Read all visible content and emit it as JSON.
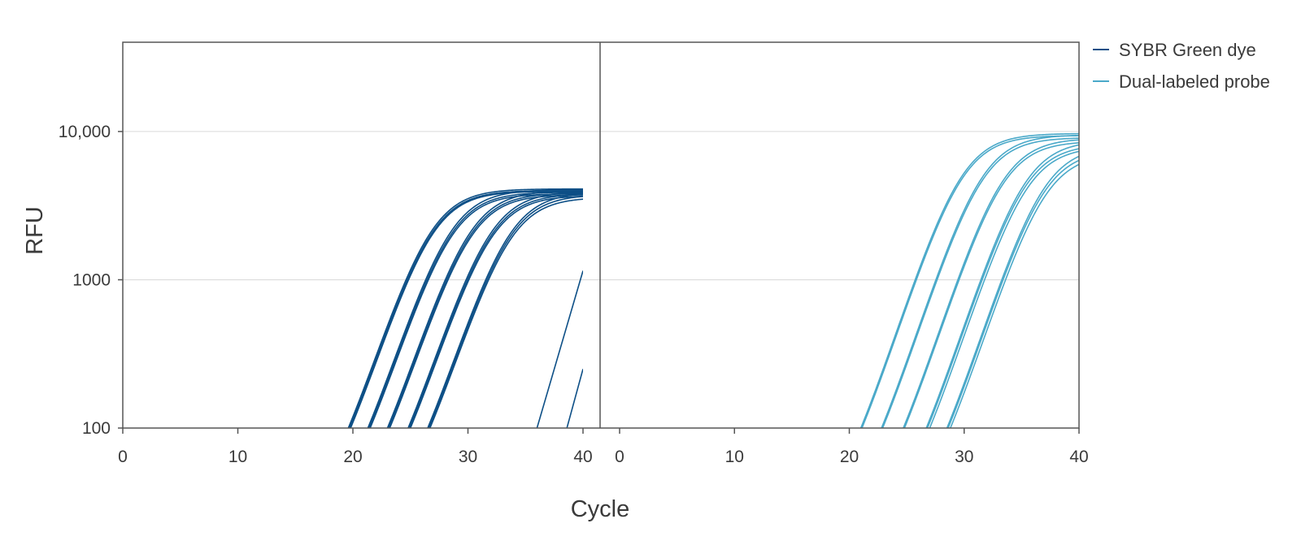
{
  "chart_data": {
    "type": "line",
    "title": "",
    "xlabel": "Cycle",
    "ylabel": "RFU",
    "y_scale": "log",
    "ylim": [
      100,
      40000
    ],
    "grid": "horizontal",
    "legend_placement": "right",
    "colors": {
      "sybr": "#0d4f86",
      "probe": "#4aa9c9",
      "axis": "#555555",
      "grid": "#d9d9d9"
    },
    "y_ticks": [
      {
        "value": 100,
        "label": "100"
      },
      {
        "value": 1000,
        "label": "1000"
      },
      {
        "value": 10000,
        "label": "10,000"
      }
    ],
    "panels": [
      {
        "name": "SYBR Green dye",
        "xlim": [
          0,
          40
        ],
        "x_ticks": [
          {
            "value": 0,
            "label": "0"
          },
          {
            "value": 10,
            "label": "10"
          },
          {
            "value": 20,
            "label": "20"
          },
          {
            "value": 30,
            "label": "30"
          },
          {
            "value": 40,
            "label": "40"
          }
        ],
        "color": "#0d4f86",
        "curve_params": [
          {
            "cq": 19.6,
            "plateau": 4100
          },
          {
            "cq": 19.7,
            "plateau": 4000
          },
          {
            "cq": 19.8,
            "plateau": 3950
          },
          {
            "cq": 21.3,
            "plateau": 4050
          },
          {
            "cq": 21.4,
            "plateau": 3900
          },
          {
            "cq": 21.5,
            "plateau": 3800
          },
          {
            "cq": 23.0,
            "plateau": 4000
          },
          {
            "cq": 23.1,
            "plateau": 3850
          },
          {
            "cq": 23.2,
            "plateau": 3750
          },
          {
            "cq": 24.8,
            "plateau": 3950
          },
          {
            "cq": 24.9,
            "plateau": 3800
          },
          {
            "cq": 25.0,
            "plateau": 3700
          },
          {
            "cq": 26.5,
            "plateau": 3900
          },
          {
            "cq": 26.6,
            "plateau": 3750
          },
          {
            "cq": 26.7,
            "plateau": 3600
          }
        ],
        "late_lines": [
          {
            "x": [
              36.0,
              40.0
            ],
            "y": [
              100,
              1150
            ]
          },
          {
            "x": [
              38.6,
              40.0
            ],
            "y": [
              100,
              250
            ]
          }
        ]
      },
      {
        "name": "Dual-labeled probe",
        "xlim": [
          0,
          40
        ],
        "x_ticks": [
          {
            "value": 0,
            "label": "0"
          },
          {
            "value": 10,
            "label": "10"
          },
          {
            "value": 20,
            "label": "20"
          },
          {
            "value": 30,
            "label": "30"
          },
          {
            "value": 40,
            "label": "40"
          }
        ],
        "color": "#4aa9c9",
        "curve_params": [
          {
            "cq": 21.0,
            "plateau": 9700
          },
          {
            "cq": 21.1,
            "plateau": 9400
          },
          {
            "cq": 22.8,
            "plateau": 9500
          },
          {
            "cq": 22.9,
            "plateau": 9100
          },
          {
            "cq": 24.7,
            "plateau": 9000
          },
          {
            "cq": 24.8,
            "plateau": 8600
          },
          {
            "cq": 26.7,
            "plateau": 8700
          },
          {
            "cq": 26.8,
            "plateau": 8200
          },
          {
            "cq": 27.0,
            "plateau": 7900
          },
          {
            "cq": 28.5,
            "plateau": 8000
          },
          {
            "cq": 28.6,
            "plateau": 7500
          },
          {
            "cq": 28.8,
            "plateau": 7100
          }
        ]
      }
    ],
    "legend": [
      {
        "label": "SYBR Green dye",
        "color": "#0d4f86"
      },
      {
        "label": "Dual-labeled probe",
        "color": "#4aa9c9"
      }
    ]
  }
}
